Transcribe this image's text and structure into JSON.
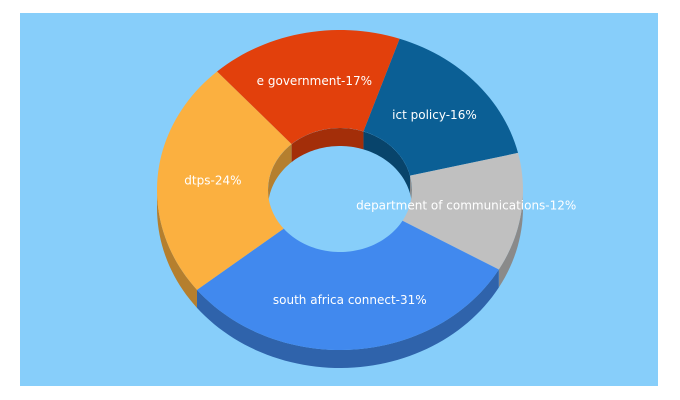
{
  "chart_data": {
    "type": "donut3d",
    "categories": [
      "ict policy-16%",
      "department of communications-12%",
      "south africa connect-31%",
      "dtps-24%",
      "e government-17%"
    ],
    "values": [
      16,
      12,
      31,
      24,
      17
    ],
    "colors": [
      "#0b5f95",
      "#c0c0c0",
      "#4189ee",
      "#fbb040",
      "#e2400c"
    ]
  }
}
